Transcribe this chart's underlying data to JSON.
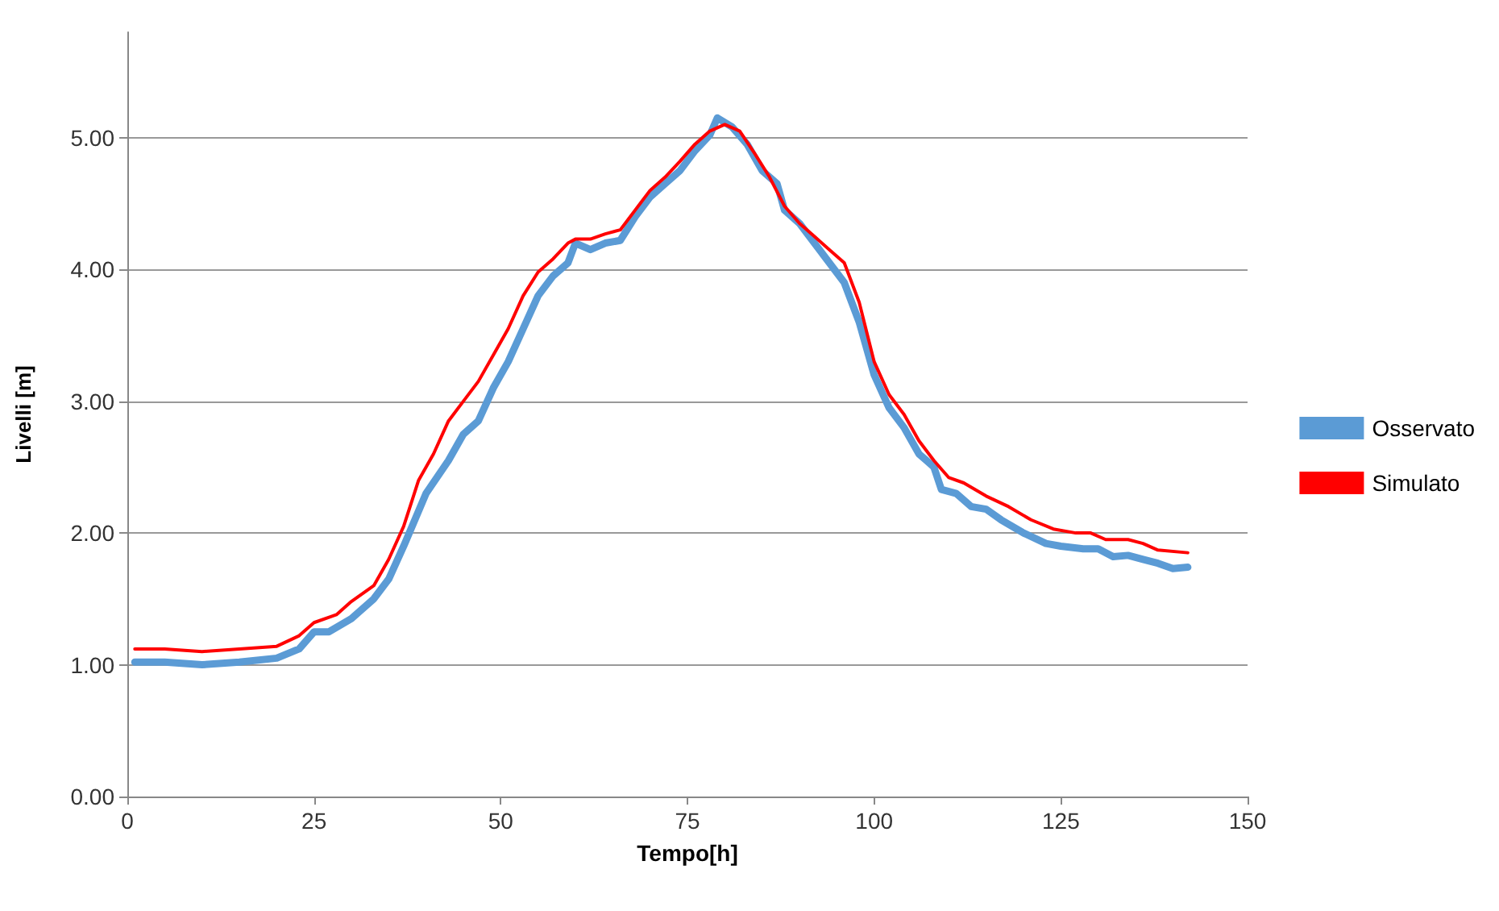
{
  "chart_data": {
    "type": "line",
    "xlabel": "Tempo[h]",
    "ylabel": "Livelli [m]",
    "xlim": [
      0,
      150
    ],
    "xticks": [
      0,
      25,
      50,
      75,
      100,
      125,
      150
    ],
    "ylim": [
      0,
      5.8
    ],
    "yticks": [
      {
        "value": 0,
        "label": "0.00"
      },
      {
        "value": 1,
        "label": "1.00"
      },
      {
        "value": 2,
        "label": "2.00"
      },
      {
        "value": 3,
        "label": "3.00"
      },
      {
        "value": 4,
        "label": "4.00"
      },
      {
        "value": 5,
        "label": "5.00"
      }
    ],
    "grid": "y",
    "legend": "right",
    "marker": "none",
    "line_style": "solid",
    "series": [
      {
        "name": "Osservato",
        "color": "#5b9bd5",
        "x": [
          1,
          5,
          10,
          15,
          20,
          23,
          25,
          27,
          30,
          33,
          35,
          37,
          40,
          43,
          45,
          47,
          49,
          51,
          53,
          55,
          57,
          59,
          60,
          62,
          64,
          66,
          68,
          70,
          72,
          74,
          76,
          78,
          79,
          81,
          83,
          85,
          87,
          88,
          90,
          92,
          94,
          96,
          98,
          100,
          102,
          104,
          106,
          107,
          108,
          109,
          111,
          113,
          115,
          117,
          120,
          123,
          125,
          128,
          130,
          132,
          134,
          136,
          138,
          140,
          142
        ],
        "values": [
          1.02,
          1.02,
          1.0,
          1.02,
          1.05,
          1.12,
          1.25,
          1.25,
          1.35,
          1.5,
          1.65,
          1.9,
          2.3,
          2.55,
          2.75,
          2.85,
          3.1,
          3.3,
          3.55,
          3.8,
          3.95,
          4.05,
          4.2,
          4.15,
          4.2,
          4.22,
          4.4,
          4.55,
          4.65,
          4.75,
          4.9,
          5.02,
          5.15,
          5.08,
          4.95,
          4.75,
          4.65,
          4.45,
          4.35,
          4.2,
          4.05,
          3.9,
          3.6,
          3.2,
          2.95,
          2.8,
          2.6,
          2.55,
          2.5,
          2.33,
          2.3,
          2.2,
          2.18,
          2.1,
          2.0,
          1.92,
          1.9,
          1.88,
          1.88,
          1.82,
          1.83,
          1.8,
          1.77,
          1.73,
          1.74
        ]
      },
      {
        "name": "Simulato",
        "color": "#ff0000",
        "x": [
          1,
          5,
          10,
          15,
          20,
          23,
          25,
          28,
          30,
          33,
          35,
          37,
          39,
          41,
          43,
          45,
          47,
          49,
          51,
          53,
          55,
          57,
          59,
          60,
          62,
          64,
          66,
          68,
          70,
          72,
          74,
          76,
          78,
          80,
          82,
          84,
          86,
          88,
          90,
          92,
          94,
          96,
          98,
          100,
          102,
          104,
          106,
          108,
          110,
          112,
          115,
          118,
          121,
          124,
          127,
          129,
          131,
          134,
          136,
          138,
          142
        ],
        "values": [
          1.12,
          1.12,
          1.1,
          1.12,
          1.14,
          1.22,
          1.32,
          1.38,
          1.48,
          1.6,
          1.8,
          2.05,
          2.4,
          2.6,
          2.85,
          3.0,
          3.15,
          3.35,
          3.55,
          3.8,
          3.98,
          4.08,
          4.2,
          4.23,
          4.23,
          4.27,
          4.3,
          4.45,
          4.6,
          4.7,
          4.82,
          4.95,
          5.05,
          5.1,
          5.05,
          4.88,
          4.7,
          4.48,
          4.35,
          4.25,
          4.15,
          4.05,
          3.75,
          3.3,
          3.05,
          2.9,
          2.7,
          2.55,
          2.42,
          2.38,
          2.28,
          2.2,
          2.1,
          2.03,
          2.0,
          2.0,
          1.95,
          1.95,
          1.92,
          1.87,
          1.85
        ]
      }
    ]
  }
}
